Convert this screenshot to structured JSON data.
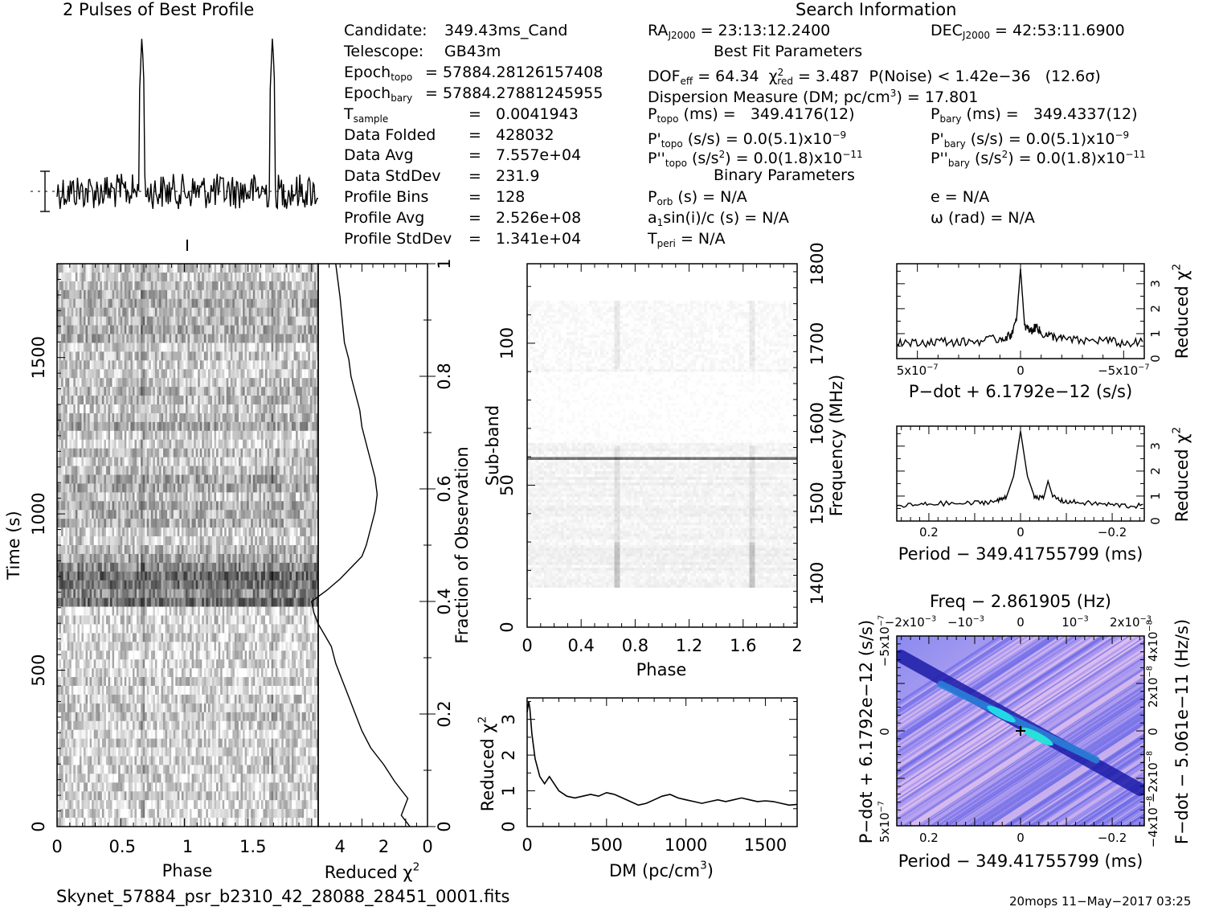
{
  "headers": {
    "profile_title": "2 Pulses of Best Profile",
    "search_info": "Search Information",
    "best_fit": "Best Fit Parameters",
    "binary": "Binary Parameters"
  },
  "info_left": [
    {
      "label": "Candidate:",
      "value": "349.43ms_Cand"
    },
    {
      "label": "Telescope:",
      "value": "GB43m"
    },
    {
      "label": "Epoch",
      "sub": "topo",
      "value": "= 57884.28126157408"
    },
    {
      "label": "Epoch",
      "sub": "bary",
      "value": "= 57884.27881245955"
    },
    {
      "label": "T",
      "sub": "sample",
      "value": "=   0.0041943"
    },
    {
      "label": "Data Folded",
      "value": "=   428032"
    },
    {
      "label": "Data Avg",
      "value": "=   7.557e+04"
    },
    {
      "label": "Data StdDev",
      "value": "=   231.9"
    },
    {
      "label": "Profile Bins",
      "value": "=   128"
    },
    {
      "label": "Profile Avg",
      "value": "=   2.526e+08"
    },
    {
      "label": "Profile StdDev",
      "value": "=   1.341e+04"
    }
  ],
  "info_mid": {
    "ra_label": "RA",
    "ra_sub": "J2000",
    "ra_value": "= 23:13:12.2400",
    "dec_label": "DEC",
    "dec_sub": "J2000",
    "dec_value": "= 42:53:11.6900",
    "dof": "DOF",
    "dof_sub": "eff",
    "dof_value": "= 64.34",
    "chi": "χ",
    "chi_sub": "red",
    "chi_value": "= 3.487",
    "pnoise": "P(Noise) < 1.42e−36   (12.6σ)",
    "dm": "Dispersion Measure (DM; pc/cm",
    "dm_value": ") = 17.801",
    "ptopo": "P",
    "ptopo_sub": "topo",
    "ptopo_value": "(ms) =   349.4176(12)",
    "pbary": "P",
    "pbary_sub": "bary",
    "pbary_value": "(ms) =   349.4337(12)",
    "pdtopo": "P'",
    "pdtopo_sub": "topo",
    "pdtopo_value": "(s/s) = 0.0(5.1)x10",
    "pdtopo_exp": "−9",
    "pdbary": "P'",
    "pdbary_sub": "bary",
    "pdbary_value": "(s/s) = 0.0(5.1)x10",
    "pdbary_exp": "−9",
    "pddtopo": "P''",
    "pddtopo_sub": "topo",
    "pddtopo_value": "(s/s",
    "pddtopo_value2": ") = 0.0(1.8)x10",
    "pddtopo_exp": "−11",
    "pddbary": "P''",
    "pddbary_sub": "bary",
    "pddbary_value": "(s/s",
    "pddbary_value2": ") = 0.0(1.8)x10",
    "pddbary_exp": "−11",
    "porb": "P",
    "porb_sub": "orb",
    "porb_value": "(s) = N/A",
    "e_value": "e = N/A",
    "asini": "a",
    "asini_sub": "1",
    "asini_value": "sin(i)/c (s) = N/A",
    "omega": "ω (rad) = N/A",
    "tperi": "T",
    "tperi_sub": "peri",
    "tperi_value": "= N/A"
  },
  "footer": {
    "filename": "Skynet_57884_psr_b2310_42_28088_28451_0001.fits",
    "stamp": "20mops 11−May−2017 03:25"
  },
  "chart_data": [
    {
      "type": "line",
      "panel": "profile",
      "title": "2 Pulses of Best Profile",
      "x_range": [
        0,
        2
      ],
      "pulse_phase": [
        0.65,
        1.65
      ],
      "description_of_marks": "two narrow pulses over noisy baseline"
    },
    {
      "type": "heatmap",
      "panel": "time-phase",
      "xlabel": "Phase",
      "ylabel": "Time (s)",
      "xlim": [
        0,
        2
      ],
      "ylim": [
        0,
        1800
      ],
      "x_ticks": [
        "0",
        "0.5",
        "1",
        "1.5"
      ],
      "y_ticks": [
        "0",
        "500",
        "1000",
        "1500"
      ]
    },
    {
      "type": "line",
      "panel": "fraction-chi2",
      "xlabel": "Reduced χ",
      "ylabel": "Fraction of Observation",
      "xlim": [
        5,
        0
      ],
      "ylim": [
        0,
        1
      ],
      "x_ticks": [
        "4",
        "2",
        "0"
      ],
      "y_ticks": [
        "0",
        "0.2",
        "0.4",
        "0.6",
        "0.8",
        "1"
      ],
      "x": [
        0.8,
        1.2,
        0.9,
        1.5,
        2.0,
        2.6,
        3.0,
        3.3,
        3.6,
        3.9,
        4.2,
        4.4,
        4.7,
        5.0,
        5.2,
        5.3,
        4.6,
        4.0,
        3.5,
        3.0,
        2.8,
        2.6,
        2.4,
        2.3,
        2.4,
        2.6,
        2.8,
        3.0,
        3.1,
        3.3,
        3.5,
        3.6,
        3.8,
        3.9,
        4.0,
        4.1,
        4.2
      ],
      "y": [
        0.0,
        0.02,
        0.05,
        0.08,
        0.11,
        0.14,
        0.17,
        0.2,
        0.23,
        0.26,
        0.29,
        0.32,
        0.34,
        0.36,
        0.38,
        0.4,
        0.42,
        0.44,
        0.46,
        0.48,
        0.5,
        0.53,
        0.56,
        0.59,
        0.62,
        0.65,
        0.68,
        0.71,
        0.74,
        0.77,
        0.8,
        0.83,
        0.86,
        0.9,
        0.94,
        0.97,
        1.0
      ]
    },
    {
      "type": "heatmap",
      "panel": "subband-phase",
      "xlabel": "Phase",
      "ylabel": "Sub-band",
      "y2label": "Frequency (MHz)",
      "xlim": [
        0,
        2
      ],
      "ylim": [
        0,
        128
      ],
      "x_ticks": [
        "0",
        "0.4",
        "0.8",
        "1.2",
        "1.6",
        "2"
      ],
      "y_ticks": [
        "0",
        "50",
        "100"
      ],
      "y2_ticks": [
        "1400",
        "1500",
        "1600",
        "1700",
        "1800"
      ]
    },
    {
      "type": "line",
      "panel": "dm-chi2",
      "xlabel": "DM (pc/cm",
      "ylabel": "Reduced χ",
      "xlim": [
        0,
        1700
      ],
      "ylim": [
        0,
        3.6
      ],
      "x_ticks": [
        "0",
        "500",
        "1000",
        "1500"
      ],
      "y_ticks": [
        "0",
        "1",
        "2",
        "3"
      ],
      "x": [
        0,
        10,
        17,
        30,
        50,
        80,
        110,
        140,
        170,
        200,
        250,
        300,
        350,
        400,
        450,
        500,
        550,
        600,
        650,
        700,
        750,
        800,
        850,
        900,
        950,
        1000,
        1050,
        1100,
        1150,
        1200,
        1250,
        1300,
        1350,
        1400,
        1450,
        1500,
        1550,
        1600,
        1650,
        1700
      ],
      "y": [
        3.2,
        3.5,
        3.3,
        2.6,
        1.9,
        1.4,
        1.2,
        1.4,
        1.2,
        1.0,
        0.85,
        0.8,
        0.85,
        0.9,
        0.85,
        0.95,
        0.9,
        0.8,
        0.7,
        0.6,
        0.65,
        0.75,
        0.85,
        0.9,
        0.8,
        0.75,
        0.7,
        0.65,
        0.7,
        0.75,
        0.7,
        0.75,
        0.8,
        0.75,
        0.7,
        0.72,
        0.7,
        0.65,
        0.6,
        0.62
      ]
    },
    {
      "type": "line",
      "panel": "pdot-chi2",
      "xlabel": "P−dot + 6.1792e−12 (s/s)",
      "ylabel": "Reduced χ",
      "xlim": [
        6e-07,
        -6e-07
      ],
      "ylim": [
        0,
        3.8
      ],
      "x_ticks": [
        "5x10",
        "0",
        "−5x10"
      ],
      "x_tick_exp": "−7",
      "y_ticks": [
        "0",
        "1",
        "2",
        "3"
      ],
      "x": [
        6e-07,
        5e-07,
        4e-07,
        3e-07,
        2e-07,
        1e-07,
        5e-08,
        2e-08,
        0,
        -2e-08,
        -5e-08,
        -8e-08,
        -1e-07,
        -1.5e-07,
        -2e-07,
        -3e-07,
        -4e-07,
        -5e-07,
        -6e-07
      ],
      "y": [
        0.7,
        0.6,
        0.7,
        0.65,
        0.7,
        0.8,
        0.9,
        1.5,
        3.6,
        1.3,
        1.1,
        1.3,
        1.0,
        0.9,
        0.8,
        0.7,
        0.75,
        0.6,
        0.65
      ]
    },
    {
      "type": "line",
      "panel": "period-chi2",
      "xlabel": "Period − 349.41755799 (ms)",
      "ylabel": "Reduced χ",
      "xlim": [
        0.27,
        -0.27
      ],
      "ylim": [
        0,
        3.8
      ],
      "x_ticks": [
        "0.2",
        "0",
        "−0.2"
      ],
      "y_ticks": [
        "0",
        "1",
        "2",
        "3"
      ],
      "x": [
        0.27,
        0.22,
        0.18,
        0.12,
        0.08,
        0.05,
        0.03,
        0.015,
        0.0,
        -0.015,
        -0.03,
        -0.05,
        -0.06,
        -0.07,
        -0.09,
        -0.12,
        -0.16,
        -0.2,
        -0.24,
        -0.27
      ],
      "y": [
        0.6,
        0.65,
        0.7,
        0.7,
        0.75,
        0.8,
        1.0,
        1.8,
        3.6,
        1.8,
        1.0,
        0.9,
        1.6,
        1.0,
        0.8,
        0.75,
        0.7,
        0.65,
        0.6,
        0.62
      ]
    },
    {
      "type": "heatmap",
      "panel": "period-pdot",
      "title": "Freq − 2.861905 (Hz)",
      "xlabel": "Period − 349.41755799 (ms)",
      "ylabel": "P−dot + 6.1792e−12 (s/s)",
      "y2label": "F−dot − 5.061e−11 (Hz/s)",
      "xlim": [
        0.27,
        -0.27
      ],
      "x_ticks": [
        "0.2",
        "0",
        "−0.2"
      ],
      "top_ticks": [
        "−2x10",
        "−10",
        "0",
        "10",
        "2x10"
      ],
      "top_tick_exp": "−3",
      "y_ticks": [
        "5x10",
        "0",
        "−5x10"
      ],
      "y_tick_exp": "−7",
      "y2_ticks": [
        "−4x10",
        "−2x10",
        "0",
        "2x10",
        "4x10"
      ],
      "y2_tick_exp": "−8"
    }
  ]
}
